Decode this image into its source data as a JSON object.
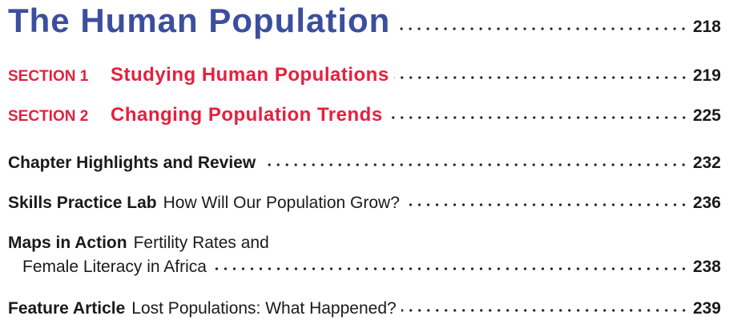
{
  "title": {
    "text": "The Human Population",
    "page": 218
  },
  "sections": [
    {
      "label": "SECTION 1",
      "title": "Studying Human Populations",
      "page": 219
    },
    {
      "label": "SECTION 2",
      "title": "Changing Population Trends",
      "page": 225
    }
  ],
  "entries": [
    {
      "label": "Chapter Highlights and Review",
      "page": 232
    },
    {
      "label": "Skills Practice Lab",
      "text": "How Will Our Population Grow?",
      "page": 236
    },
    {
      "label": "Maps in Action",
      "lines": [
        "Fertility Rates and",
        "Female Literacy in Africa"
      ],
      "page": 238
    },
    {
      "label": "Feature Article",
      "text": "Lost Populations: What Happened?",
      "page": 239
    }
  ]
}
